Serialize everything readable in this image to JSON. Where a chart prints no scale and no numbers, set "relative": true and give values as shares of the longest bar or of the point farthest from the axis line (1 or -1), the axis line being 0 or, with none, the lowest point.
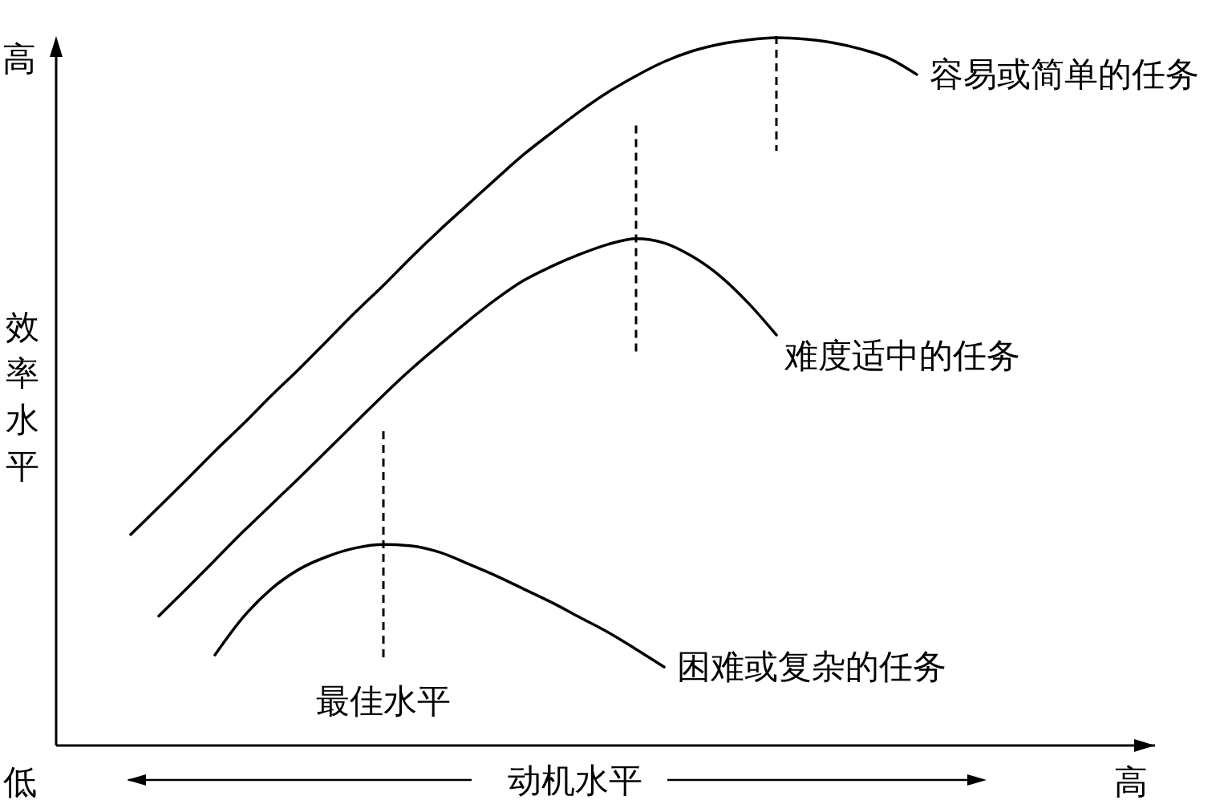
{
  "chart_data": {
    "type": "line",
    "relative": true,
    "xlabel": "动机水平",
    "ylabel": "效率水平",
    "categories": [
      null,
      null,
      null,
      null,
      null,
      null,
      null,
      null,
      null,
      null,
      null,
      null,
      null,
      null,
      null,
      null,
      null,
      null,
      null,
      null,
      null,
      null,
      null,
      null,
      null,
      null,
      null,
      null,
      null
    ],
    "annotations": [
      "低",
      "高",
      "高",
      "最佳水平"
    ],
    "legend": false,
    "grid": false,
    "marker": "none",
    "line_style": "solid",
    "series": [
      {
        "name": "容易或简单的任务",
        "color": "#000000",
        "values": [
          0.298,
          0.337,
          0.376,
          0.416,
          0.454,
          0.494,
          0.532,
          0.572,
          0.612,
          0.65,
          0.69,
          0.728,
          0.764,
          0.8,
          0.835,
          0.866,
          0.896,
          0.923,
          0.946,
          0.966,
          0.981,
          0.991,
          0.997,
          1,
          0.998,
          0.993,
          0.984,
          0.971,
          0.948
        ]
      },
      {
        "name": "难度适中的任务",
        "color": "#000000",
        "values": [
          null,
          0.183,
          0.222,
          0.262,
          0.302,
          0.34,
          0.378,
          0.417,
          0.456,
          0.495,
          0.532,
          0.566,
          0.599,
          0.63,
          0.657,
          0.677,
          0.694,
          0.708,
          0.716,
          0.71,
          0.691,
          0.663,
          0.625,
          0.58,
          null,
          null,
          null,
          null,
          null
        ]
      },
      {
        "name": "困难或复杂的任务",
        "color": "#000000",
        "values": [
          null,
          null,
          null,
          0.128,
          0.181,
          0.221,
          0.249,
          0.267,
          0.279,
          0.284,
          0.282,
          0.273,
          0.257,
          0.24,
          0.221,
          0.202,
          0.181,
          0.16,
          0.136,
          0.111,
          null,
          null,
          null,
          null,
          null,
          null,
          null,
          null,
          null
        ]
      }
    ]
  }
}
